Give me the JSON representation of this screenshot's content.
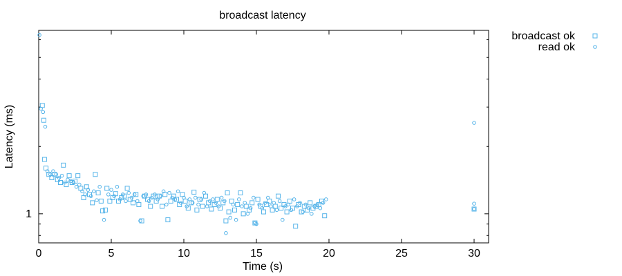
{
  "chart_data": {
    "type": "scatter",
    "title": "broadcast latency",
    "xlabel": "Time (s)",
    "ylabel": "Latency (ms)",
    "xlim": [
      0,
      31
    ],
    "ylim_log10": [
      -0.13,
      0.82
    ],
    "yscale": "log",
    "x_ticks": [
      0,
      5,
      10,
      15,
      20,
      25,
      30
    ],
    "x_tick_labels": [
      "0",
      "5",
      "10",
      "15",
      "20",
      "25",
      "30"
    ],
    "y_tick_labels": [
      "1"
    ],
    "y_major_ticks": [
      1
    ],
    "y_minor_ticks": [
      0.8,
      0.9,
      2,
      3,
      4,
      5,
      6
    ],
    "legend_position": "top-right, outside plot",
    "grid": false,
    "marker_color": "#56B4E9",
    "series": [
      {
        "name": "broadcast ok",
        "marker": "square",
        "points": [
          [
            0.25,
            3.05
          ],
          [
            0.35,
            2.62
          ],
          [
            0.4,
            1.75
          ],
          [
            0.5,
            1.6
          ],
          [
            0.7,
            1.5
          ],
          [
            0.9,
            1.45
          ],
          [
            1.1,
            1.5
          ],
          [
            1.3,
            1.42
          ],
          [
            1.5,
            1.38
          ],
          [
            1.7,
            1.65
          ],
          [
            1.9,
            1.35
          ],
          [
            2.1,
            1.48
          ],
          [
            2.3,
            1.38
          ],
          [
            2.5,
            1.4
          ],
          [
            2.7,
            1.48
          ],
          [
            2.9,
            1.3
          ],
          [
            3.1,
            1.18
          ],
          [
            3.3,
            1.32
          ],
          [
            3.5,
            1.22
          ],
          [
            3.7,
            1.12
          ],
          [
            3.9,
            1.5
          ],
          [
            4.1,
            1.24
          ],
          [
            4.3,
            1.14
          ],
          [
            4.4,
            1.03
          ],
          [
            4.6,
            1.04
          ],
          [
            4.7,
            1.3
          ],
          [
            4.9,
            1.14
          ],
          [
            5.1,
            1.18
          ],
          [
            5.3,
            1.23
          ],
          [
            5.5,
            1.14
          ],
          [
            5.7,
            1.18
          ],
          [
            5.9,
            1.2
          ],
          [
            6.1,
            1.3
          ],
          [
            6.3,
            1.16
          ],
          [
            6.5,
            1.12
          ],
          [
            6.7,
            1.22
          ],
          [
            6.9,
            1.1
          ],
          [
            7.1,
            0.93
          ],
          [
            7.3,
            1.2
          ],
          [
            7.5,
            1.16
          ],
          [
            7.7,
            1.08
          ],
          [
            7.9,
            1.2
          ],
          [
            8.1,
            1.14
          ],
          [
            8.3,
            1.2
          ],
          [
            8.5,
            1.08
          ],
          [
            8.7,
            1.22
          ],
          [
            8.9,
            0.94
          ],
          [
            9.1,
            1.14
          ],
          [
            9.3,
            1.2
          ],
          [
            9.5,
            1.16
          ],
          [
            9.7,
            1.1
          ],
          [
            9.9,
            1.22
          ],
          [
            10.1,
            1.14
          ],
          [
            10.3,
            1.06
          ],
          [
            10.5,
            1.12
          ],
          [
            10.7,
            1.25
          ],
          [
            10.9,
            1.04
          ],
          [
            11.1,
            1.16
          ],
          [
            11.3,
            1.08
          ],
          [
            11.5,
            1.2
          ],
          [
            11.7,
            1.12
          ],
          [
            11.9,
            1.05
          ],
          [
            12.1,
            1.1
          ],
          [
            12.3,
            1.16
          ],
          [
            12.5,
            1.06
          ],
          [
            12.7,
            1.12
          ],
          [
            12.9,
            0.93
          ],
          [
            13.0,
            1.24
          ],
          [
            13.1,
            1.02
          ],
          [
            13.3,
            1.14
          ],
          [
            13.5,
            1.04
          ],
          [
            13.7,
            1.1
          ],
          [
            13.9,
            1.24
          ],
          [
            14.1,
            1.0
          ],
          [
            14.3,
            1.08
          ],
          [
            14.5,
            1.04
          ],
          [
            14.7,
            1.12
          ],
          [
            14.9,
            0.91
          ],
          [
            15.1,
            1.16
          ],
          [
            15.3,
            1.08
          ],
          [
            15.5,
            1.02
          ],
          [
            15.7,
            1.1
          ],
          [
            15.9,
            1.14
          ],
          [
            16.1,
            1.04
          ],
          [
            16.3,
            1.08
          ],
          [
            16.5,
            1.2
          ],
          [
            16.7,
            1.06
          ],
          [
            16.9,
            1.1
          ],
          [
            17.1,
            1.02
          ],
          [
            17.3,
            1.14
          ],
          [
            17.5,
            1.06
          ],
          [
            17.7,
            0.88
          ],
          [
            17.9,
            1.1
          ],
          [
            18.1,
            1.02
          ],
          [
            18.3,
            1.08
          ],
          [
            18.5,
            1.04
          ],
          [
            18.7,
            1.12
          ],
          [
            18.9,
            1.06
          ],
          [
            19.1,
            1.08
          ],
          [
            19.3,
            1.1
          ],
          [
            19.5,
            1.14
          ],
          [
            19.7,
            0.98
          ],
          [
            30.0,
            1.05
          ]
        ]
      },
      {
        "name": "read ok",
        "marker": "circle",
        "points": [
          [
            0.05,
            6.3
          ],
          [
            0.15,
            2.95
          ],
          [
            0.3,
            2.85
          ],
          [
            0.45,
            2.45
          ],
          [
            0.6,
            1.55
          ],
          [
            0.8,
            1.5
          ],
          [
            1.0,
            1.55
          ],
          [
            1.2,
            1.5
          ],
          [
            1.4,
            1.45
          ],
          [
            1.6,
            1.48
          ],
          [
            1.8,
            1.38
          ],
          [
            2.0,
            1.42
          ],
          [
            2.2,
            1.4
          ],
          [
            2.4,
            1.38
          ],
          [
            2.6,
            1.32
          ],
          [
            2.8,
            1.35
          ],
          [
            3.0,
            1.26
          ],
          [
            3.2,
            1.22
          ],
          [
            3.4,
            1.28
          ],
          [
            3.6,
            1.2
          ],
          [
            3.8,
            1.26
          ],
          [
            4.0,
            1.15
          ],
          [
            4.2,
            1.32
          ],
          [
            4.5,
            0.94
          ],
          [
            4.8,
            1.22
          ],
          [
            5.0,
            1.28
          ],
          [
            5.2,
            1.2
          ],
          [
            5.4,
            1.32
          ],
          [
            5.6,
            1.16
          ],
          [
            5.8,
            1.22
          ],
          [
            6.0,
            1.14
          ],
          [
            6.2,
            1.24
          ],
          [
            6.4,
            1.18
          ],
          [
            6.6,
            1.22
          ],
          [
            6.8,
            1.14
          ],
          [
            7.0,
            0.93
          ],
          [
            7.2,
            1.2
          ],
          [
            7.4,
            1.22
          ],
          [
            7.6,
            1.14
          ],
          [
            7.8,
            1.18
          ],
          [
            8.0,
            1.22
          ],
          [
            8.2,
            1.16
          ],
          [
            8.4,
            1.2
          ],
          [
            8.6,
            1.26
          ],
          [
            8.8,
            1.1
          ],
          [
            9.0,
            1.24
          ],
          [
            9.2,
            1.18
          ],
          [
            9.4,
            1.16
          ],
          [
            9.6,
            1.26
          ],
          [
            9.8,
            1.12
          ],
          [
            10.0,
            1.18
          ],
          [
            10.2,
            1.08
          ],
          [
            10.4,
            1.16
          ],
          [
            10.6,
            1.12
          ],
          [
            10.8,
            1.18
          ],
          [
            11.0,
            1.1
          ],
          [
            11.2,
            1.16
          ],
          [
            11.4,
            1.24
          ],
          [
            11.6,
            1.08
          ],
          [
            11.8,
            1.14
          ],
          [
            12.0,
            1.16
          ],
          [
            12.2,
            1.12
          ],
          [
            12.4,
            1.08
          ],
          [
            12.6,
            1.18
          ],
          [
            12.8,
            1.14
          ],
          [
            12.9,
            0.82
          ],
          [
            13.2,
            0.96
          ],
          [
            13.4,
            1.1
          ],
          [
            13.6,
            0.94
          ],
          [
            13.8,
            1.16
          ],
          [
            14.0,
            1.08
          ],
          [
            14.2,
            1.12
          ],
          [
            14.4,
            1.0
          ],
          [
            14.6,
            1.06
          ],
          [
            14.8,
            1.18
          ],
          [
            14.9,
            0.91
          ],
          [
            15.0,
            0.9
          ],
          [
            15.2,
            1.1
          ],
          [
            15.4,
            1.06
          ],
          [
            15.6,
            1.12
          ],
          [
            15.8,
            1.18
          ],
          [
            16.0,
            1.08
          ],
          [
            16.2,
            1.12
          ],
          [
            16.4,
            1.04
          ],
          [
            16.6,
            1.14
          ],
          [
            16.8,
            0.94
          ],
          [
            17.0,
            1.08
          ],
          [
            17.2,
            1.1
          ],
          [
            17.4,
            1.04
          ],
          [
            17.6,
            1.16
          ],
          [
            17.8,
            1.08
          ],
          [
            18.0,
            1.12
          ],
          [
            18.2,
            1.02
          ],
          [
            18.4,
            1.1
          ],
          [
            18.6,
            1.06
          ],
          [
            18.8,
            1.0
          ],
          [
            19.0,
            1.08
          ],
          [
            19.2,
            1.1
          ],
          [
            19.4,
            1.06
          ],
          [
            19.6,
            1.12
          ],
          [
            19.8,
            1.16
          ],
          [
            30.0,
            1.05
          ],
          [
            30.0,
            1.11
          ],
          [
            30.0,
            2.55
          ]
        ]
      }
    ]
  }
}
